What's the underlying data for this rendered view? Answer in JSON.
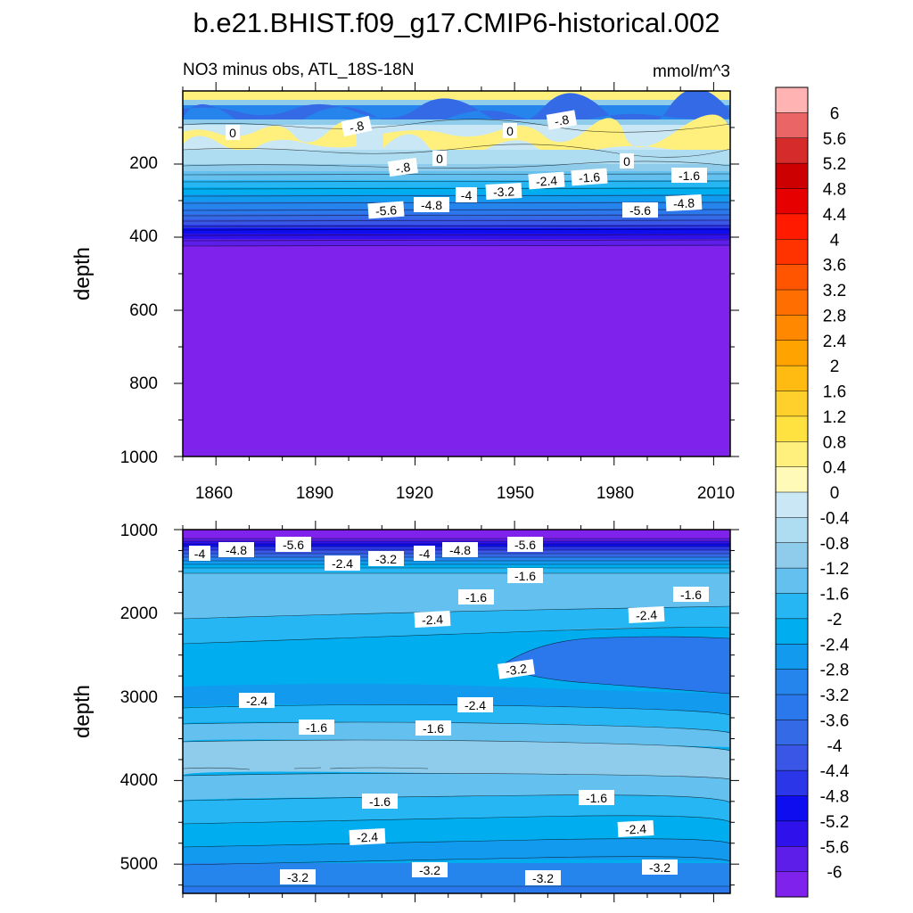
{
  "chart_data": {
    "type": "contour",
    "title": "b.e21.BHIST.f09_g17.CMIP6-historical.002",
    "units": "mmol/m^3",
    "colorbar": {
      "levels": [
        6,
        5.6,
        5.2,
        4.8,
        4.4,
        4,
        3.6,
        3.2,
        2.8,
        2.4,
        2,
        1.6,
        1.2,
        0.8,
        0.4,
        0,
        -0.4,
        -0.8,
        -1.2,
        -1.6,
        -2,
        -2.4,
        -2.8,
        -3.2,
        -3.6,
        -4,
        -4.4,
        -4.8,
        -5.2,
        -5.6,
        -6
      ],
      "labels": [
        "6",
        "5.6",
        "5.2",
        "4.8",
        "4.4",
        "4",
        "3.6",
        "3.2",
        "2.8",
        "2.4",
        "2",
        "1.6",
        "1.2",
        "0.8",
        "0.4",
        "0",
        "-0.4",
        "-0.8",
        "-1.2",
        "-1.6",
        "-2",
        "-2.4",
        "-2.8",
        "-3.2",
        "-3.6",
        "-4",
        "-4.4",
        "-4.8",
        "-5.2",
        "-5.6",
        "-6"
      ],
      "colors": [
        "#FFB3B3",
        "#EA6666",
        "#D62B2B",
        "#CC0000",
        "#E60000",
        "#FF1A00",
        "#FF3300",
        "#FF5500",
        "#FF6E00",
        "#FF8800",
        "#FFA300",
        "#FFBB11",
        "#FFD02B",
        "#FFE140",
        "#FFF07E",
        "#FFFAB8",
        "#C9E7F5",
        "#AEDCF1",
        "#8FCBEB",
        "#63C0EF",
        "#27B6F4",
        "#00AEF0",
        "#129AEE",
        "#2585EC",
        "#2A78EC",
        "#346AE6",
        "#3A56E6",
        "#2A36E8",
        "#0D0DF0",
        "#2F12EB",
        "#5D1EEA",
        "#7F22EB"
      ]
    },
    "panels": [
      {
        "subtitle": "NO3 minus obs, ATL_18S-18N",
        "ylabel": "depth",
        "ylim": [
          0,
          1000
        ],
        "xlim": [
          1850,
          2015
        ],
        "yticks": [
          "200",
          "400",
          "600",
          "800",
          "1000"
        ],
        "xticks": [
          "1860",
          "1890",
          "1920",
          "1950",
          "1980",
          "2010"
        ],
        "contour_labels": [
          "0",
          "-.8",
          "0",
          "-.8",
          "0",
          "-.8",
          "0",
          "-2.4",
          "-1.6",
          "-1.6",
          "-4",
          "-3.2",
          "-5.6",
          "-4.8",
          "-5.6",
          "-4.8"
        ]
      },
      {
        "subtitle": "",
        "ylabel": "depth",
        "ylim": [
          1000,
          5350
        ],
        "xlim": [
          1850,
          2015
        ],
        "yticks": [
          "1000",
          "2000",
          "3000",
          "4000",
          "5000"
        ],
        "contour_labels": [
          "-4",
          "-4.8",
          "-5.6",
          "-2.4",
          "-3.2",
          "-4",
          "-4.8",
          "-5.6",
          "-1.6",
          "-1.6",
          "-1.6",
          "-2.4",
          "-2.4",
          "-3.2",
          "-2.4",
          "-2.4",
          "-1.6",
          "-1.6",
          "-1.6",
          "-1.6",
          "-2.4",
          "-2.4",
          "-3.2",
          "-3.2",
          "-3.2",
          "-3.2"
        ]
      }
    ]
  }
}
